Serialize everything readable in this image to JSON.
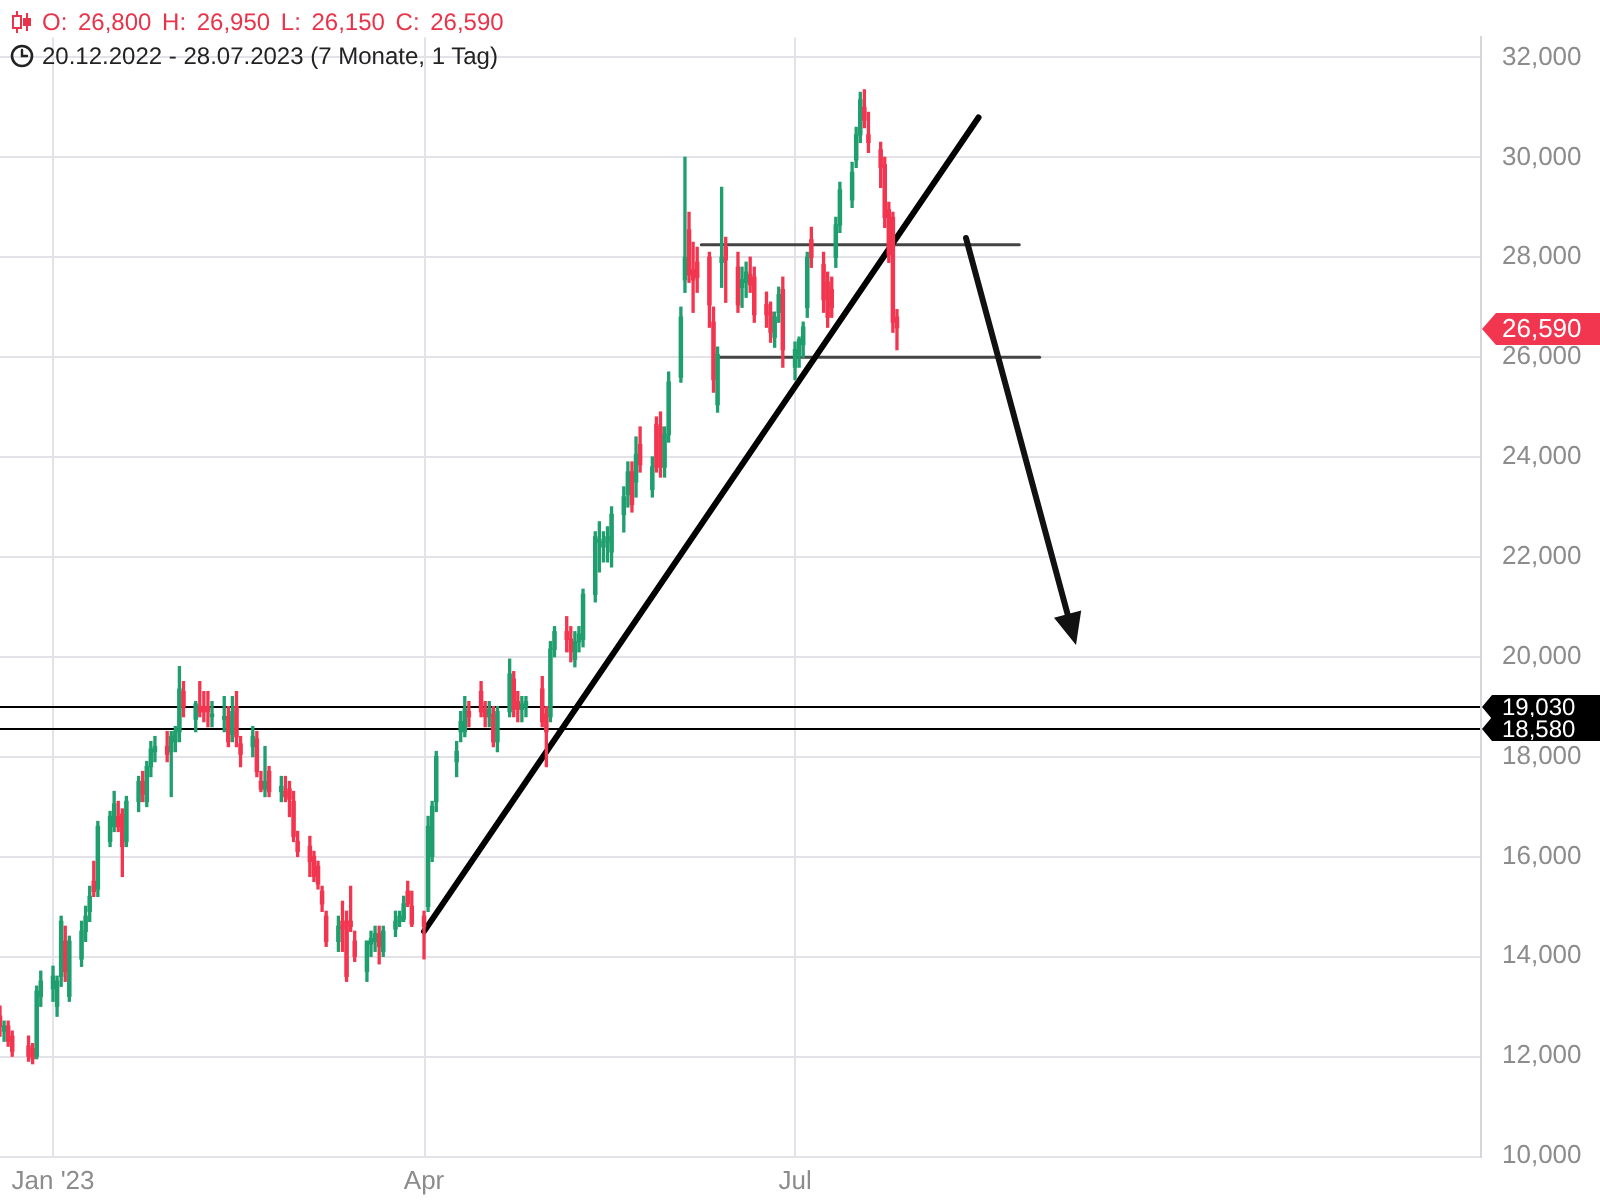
{
  "chart_data": {
    "type": "candlestick",
    "title": "O: 26,800 H: 26,950 L: 26,150 C: 26,590",
    "subtitle": "20.12.2022 - 28.07.2023 (7 Monate, 1 Tag)",
    "x": [
      "2022-12-20",
      "2022-12-21",
      "2022-12-22",
      "2022-12-23",
      "2022-12-27",
      "2022-12-28",
      "2022-12-29",
      "2022-12-30",
      "2023-01-02",
      "2023-01-03",
      "2023-01-04",
      "2023-01-05",
      "2023-01-06",
      "2023-01-09",
      "2023-01-10",
      "2023-01-11",
      "2023-01-12",
      "2023-01-13",
      "2023-01-16",
      "2023-01-17",
      "2023-01-18",
      "2023-01-19",
      "2023-01-20",
      "2023-01-23",
      "2023-01-24",
      "2023-01-25",
      "2023-01-26",
      "2023-01-27",
      "2023-01-30",
      "2023-01-31",
      "2023-02-01",
      "2023-02-02",
      "2023-02-03",
      "2023-02-06",
      "2023-02-07",
      "2023-02-08",
      "2023-02-09",
      "2023-02-10",
      "2023-02-13",
      "2023-02-14",
      "2023-02-15",
      "2023-02-16",
      "2023-02-17",
      "2023-02-20",
      "2023-02-21",
      "2023-02-22",
      "2023-02-23",
      "2023-02-24",
      "2023-02-27",
      "2023-02-28",
      "2023-03-01",
      "2023-03-02",
      "2023-03-03",
      "2023-03-06",
      "2023-03-07",
      "2023-03-08",
      "2023-03-09",
      "2023-03-10",
      "2023-03-13",
      "2023-03-14",
      "2023-03-15",
      "2023-03-16",
      "2023-03-17",
      "2023-03-20",
      "2023-03-21",
      "2023-03-22",
      "2023-03-23",
      "2023-03-24",
      "2023-03-27",
      "2023-03-28",
      "2023-03-29",
      "2023-03-30",
      "2023-03-31",
      "2023-04-03",
      "2023-04-04",
      "2023-04-05",
      "2023-04-06",
      "2023-04-11",
      "2023-04-12",
      "2023-04-13",
      "2023-04-14",
      "2023-04-17",
      "2023-04-18",
      "2023-04-19",
      "2023-04-20",
      "2023-04-21",
      "2023-04-24",
      "2023-04-25",
      "2023-04-26",
      "2023-04-27",
      "2023-04-28",
      "2023-05-02",
      "2023-05-03",
      "2023-05-04",
      "2023-05-05",
      "2023-05-08",
      "2023-05-09",
      "2023-05-10",
      "2023-05-11",
      "2023-05-12",
      "2023-05-15",
      "2023-05-16",
      "2023-05-17",
      "2023-05-18",
      "2023-05-19",
      "2023-05-22",
      "2023-05-23",
      "2023-05-24",
      "2023-05-25",
      "2023-05-26",
      "2023-05-29",
      "2023-05-30",
      "2023-05-31",
      "2023-06-01",
      "2023-06-02",
      "2023-06-05",
      "2023-06-06",
      "2023-06-07",
      "2023-06-08",
      "2023-06-09",
      "2023-06-12",
      "2023-06-13",
      "2023-06-14",
      "2023-06-15",
      "2023-06-16",
      "2023-06-19",
      "2023-06-20",
      "2023-06-21",
      "2023-06-22",
      "2023-06-23",
      "2023-06-26",
      "2023-06-27",
      "2023-06-28",
      "2023-06-29",
      "2023-06-30",
      "2023-07-03",
      "2023-07-04",
      "2023-07-05",
      "2023-07-06",
      "2023-07-07",
      "2023-07-10",
      "2023-07-11",
      "2023-07-12",
      "2023-07-13",
      "2023-07-14",
      "2023-07-17",
      "2023-07-18",
      "2023-07-19",
      "2023-07-20",
      "2023-07-21",
      "2023-07-24",
      "2023-07-25",
      "2023-07-26",
      "2023-07-27",
      "2023-07-28"
    ],
    "ohlc": [
      [
        12800,
        13000,
        12400,
        12600
      ],
      [
        12500,
        12700,
        12300,
        12600
      ],
      [
        12600,
        12700,
        12200,
        12300
      ],
      [
        12400,
        12500,
        12000,
        12100
      ],
      [
        12200,
        12400,
        11900,
        12000
      ],
      [
        12150,
        12250,
        11850,
        11950
      ],
      [
        12000,
        13400,
        11950,
        13300
      ],
      [
        13200,
        13700,
        13000,
        13500
      ],
      [
        13350,
        13800,
        13100,
        13600
      ],
      [
        13000,
        13600,
        12800,
        13500
      ],
      [
        13600,
        14800,
        13400,
        14700
      ],
      [
        14300,
        14600,
        13500,
        13700
      ],
      [
        13200,
        14400,
        13100,
        14300
      ],
      [
        13950,
        14700,
        13800,
        14500
      ],
      [
        14500,
        15000,
        14300,
        14800
      ],
      [
        14900,
        15400,
        14700,
        15200
      ],
      [
        15500,
        15900,
        15200,
        15300
      ],
      [
        15350,
        16700,
        15200,
        16600
      ],
      [
        16300,
        16900,
        16200,
        16800
      ],
      [
        16600,
        17300,
        16500,
        17050
      ],
      [
        16800,
        17100,
        16500,
        16600
      ],
      [
        16850,
        16950,
        15600,
        16200
      ],
      [
        16300,
        17200,
        16200,
        17100
      ],
      [
        17100,
        17600,
        16900,
        17500
      ],
      [
        17500,
        17700,
        17100,
        17250
      ],
      [
        17100,
        17900,
        17000,
        17800
      ],
      [
        17800,
        18300,
        17600,
        18150
      ],
      [
        18100,
        18400,
        17900,
        18200
      ],
      [
        18200,
        18500,
        17900,
        18050
      ],
      [
        18100,
        18500,
        17200,
        18400
      ],
      [
        18300,
        18600,
        18100,
        18500
      ],
      [
        18500,
        19800,
        18300,
        19350
      ],
      [
        19300,
        19500,
        18800,
        19000
      ],
      [
        18750,
        19100,
        18500,
        19050
      ],
      [
        19000,
        19500,
        18800,
        18900
      ],
      [
        19000,
        19300,
        18700,
        18900
      ],
      [
        19000,
        19300,
        18600,
        18900
      ],
      [
        18800,
        19100,
        18600,
        18850
      ],
      [
        18750,
        19200,
        18500,
        18800
      ],
      [
        18800,
        19000,
        18200,
        18300
      ],
      [
        18450,
        19200,
        18300,
        18900
      ],
      [
        19000,
        19300,
        18200,
        18400
      ],
      [
        18250,
        18400,
        17800,
        18050
      ],
      [
        18200,
        18600,
        18000,
        18400
      ],
      [
        18350,
        18500,
        17600,
        17700
      ],
      [
        17500,
        17700,
        17300,
        17350
      ],
      [
        17350,
        18200,
        17200,
        17500
      ],
      [
        17700,
        17800,
        17200,
        17300
      ],
      [
        17300,
        17600,
        17100,
        17400
      ],
      [
        17300,
        17600,
        17100,
        17200
      ],
      [
        17350,
        17500,
        16800,
        17150
      ],
      [
        17100,
        17300,
        16300,
        16400
      ],
      [
        16300,
        16500,
        16000,
        16100
      ],
      [
        16200,
        16400,
        15600,
        15900
      ],
      [
        16000,
        16100,
        15500,
        15600
      ],
      [
        15800,
        15900,
        15350,
        15450
      ],
      [
        15300,
        15400,
        14900,
        15050
      ],
      [
        14800,
        14900,
        14200,
        14300
      ],
      [
        14300,
        14800,
        14100,
        14600
      ],
      [
        14700,
        15100,
        14100,
        14550
      ],
      [
        14700,
        14900,
        13500,
        13600
      ],
      [
        14700,
        15400,
        14500,
        14600
      ],
      [
        14300,
        14500,
        13900,
        14000
      ],
      [
        13700,
        14300,
        13500,
        14300
      ],
      [
        14250,
        14500,
        14000,
        14350
      ],
      [
        14300,
        14600,
        14100,
        14450
      ],
      [
        14450,
        14600,
        13850,
        14200
      ],
      [
        14100,
        14600,
        14000,
        14500
      ],
      [
        14550,
        14900,
        14400,
        14700
      ],
      [
        14700,
        14900,
        14600,
        14800
      ],
      [
        14750,
        15200,
        14700,
        15050
      ],
      [
        15300,
        15500,
        15000,
        15050
      ],
      [
        15000,
        15300,
        14600,
        14650
      ],
      [
        14800,
        14900,
        13950,
        14600
      ],
      [
        15000,
        16800,
        14900,
        16600
      ],
      [
        16000,
        17100,
        15900,
        17000
      ],
      [
        17100,
        18100,
        16900,
        18000
      ],
      [
        17900,
        18300,
        17600,
        18100
      ],
      [
        18500,
        18900,
        18300,
        18700
      ],
      [
        18500,
        19200,
        18400,
        18950
      ],
      [
        18900,
        19100,
        18600,
        18800
      ],
      [
        19300,
        19500,
        18800,
        18900
      ],
      [
        18950,
        19100,
        18600,
        18800
      ],
      [
        18800,
        19100,
        18600,
        18950
      ],
      [
        18850,
        19000,
        18200,
        18300
      ],
      [
        18300,
        19000,
        18100,
        18900
      ],
      [
        18900,
        19950,
        18800,
        19650
      ],
      [
        19550,
        19700,
        18800,
        18950
      ],
      [
        19100,
        19300,
        18700,
        18950
      ],
      [
        18950,
        19200,
        18700,
        19050
      ],
      [
        19000,
        19200,
        18800,
        19100
      ],
      [
        19350,
        19600,
        18600,
        18700
      ],
      [
        18850,
        19000,
        17800,
        18500
      ],
      [
        18800,
        20300,
        18700,
        20150
      ],
      [
        20150,
        20600,
        20000,
        20500
      ],
      [
        20500,
        20800,
        20100,
        20350
      ],
      [
        20350,
        20600,
        19900,
        20100
      ],
      [
        19950,
        20500,
        19800,
        20300
      ],
      [
        20300,
        20600,
        20100,
        20450
      ],
      [
        20350,
        21350,
        20200,
        21250
      ],
      [
        21250,
        22500,
        21100,
        22400
      ],
      [
        22300,
        22700,
        21700,
        22350
      ],
      [
        22200,
        22500,
        21900,
        22300
      ],
      [
        22300,
        22600,
        21900,
        22400
      ],
      [
        22100,
        23000,
        21800,
        22850
      ],
      [
        22850,
        23400,
        22500,
        23200
      ],
      [
        23250,
        23900,
        23000,
        23700
      ],
      [
        23700,
        23900,
        22900,
        23050
      ],
      [
        23500,
        24400,
        23200,
        24050
      ],
      [
        24250,
        24600,
        23700,
        23850
      ],
      [
        23350,
        24000,
        23200,
        23800
      ],
      [
        24650,
        24800,
        23700,
        23800
      ],
      [
        24600,
        24900,
        23600,
        23800
      ],
      [
        23800,
        24600,
        23600,
        24450
      ],
      [
        24450,
        25700,
        24300,
        25500
      ],
      [
        25600,
        27000,
        25500,
        26800
      ],
      [
        27550,
        30000,
        27300,
        28000
      ],
      [
        28550,
        28900,
        27500,
        27650
      ],
      [
        27750,
        28300,
        26900,
        27550
      ],
      [
        27900,
        28200,
        27300,
        27600
      ],
      [
        28000,
        28100,
        26600,
        27050
      ],
      [
        26700,
        27000,
        25300,
        25550
      ],
      [
        25050,
        26200,
        24900,
        26050
      ],
      [
        27900,
        29400,
        27400,
        28000
      ],
      [
        28200,
        28400,
        27100,
        27950
      ],
      [
        27800,
        28100,
        26900,
        27050
      ],
      [
        27400,
        27800,
        27000,
        27550
      ],
      [
        27500,
        27900,
        27200,
        27700
      ],
      [
        27650,
        28000,
        27300,
        27450
      ],
      [
        27600,
        27800,
        26700,
        26850
      ],
      [
        27050,
        27300,
        26600,
        26850
      ],
      [
        26900,
        27100,
        26300,
        26500
      ],
      [
        26400,
        26900,
        26200,
        26800
      ],
      [
        26900,
        27400,
        26700,
        27250
      ],
      [
        27350,
        27600,
        25800,
        26150
      ],
      [
        25800,
        26300,
        25550,
        26150
      ],
      [
        26050,
        26400,
        25800,
        26350
      ],
      [
        26250,
        26700,
        26000,
        26600
      ],
      [
        27000,
        28100,
        26800,
        28000
      ],
      [
        28350,
        28600,
        27800,
        28000
      ],
      [
        27850,
        28100,
        26900,
        27150
      ],
      [
        27500,
        27700,
        26600,
        26800
      ],
      [
        27350,
        27600,
        26800,
        27000
      ],
      [
        28000,
        28800,
        27800,
        28650
      ],
      [
        28650,
        29500,
        28500,
        29350
      ],
      [
        29150,
        29900,
        29000,
        29700
      ],
      [
        29950,
        30600,
        29800,
        30450
      ],
      [
        30450,
        31300,
        30300,
        31150
      ],
      [
        31000,
        31350,
        30600,
        30750
      ],
      [
        30450,
        30900,
        30100,
        30300
      ],
      [
        30150,
        30300,
        29400,
        29800
      ],
      [
        29850,
        30000,
        28600,
        28800
      ],
      [
        28950,
        29100,
        27900,
        28050
      ],
      [
        28800,
        28900,
        26500,
        26700
      ],
      [
        26800,
        26950,
        26150,
        26590
      ]
    ],
    "colors": [
      "#f23650",
      "#1f9e6e",
      "#f23650",
      "#f23650",
      "#f23650",
      "#f23650",
      "#1f9e6e",
      "#1f9e6e",
      "#1f9e6e",
      "#1f9e6e",
      "#1f9e6e",
      "#f23650",
      "#1f9e6e",
      "#1f9e6e",
      "#1f9e6e",
      "#1f9e6e",
      "#f23650",
      "#1f9e6e",
      "#1f9e6e",
      "#1f9e6e",
      "#f23650",
      "#f23650",
      "#1f9e6e",
      "#1f9e6e",
      "#f23650",
      "#1f9e6e",
      "#1f9e6e",
      "#1f9e6e",
      "#f23650",
      "#1f9e6e",
      "#1f9e6e",
      "#1f9e6e",
      "#f23650",
      "#1f9e6e",
      "#f23650",
      "#f23650",
      "#f23650",
      "#1f9e6e",
      "#1f9e6e",
      "#f23650",
      "#1f9e6e",
      "#f23650",
      "#f23650",
      "#1f9e6e",
      "#f23650",
      "#f23650",
      "#1f9e6e",
      "#f23650",
      "#1f9e6e",
      "#f23650",
      "#f23650",
      "#f23650",
      "#f23650",
      "#f23650",
      "#f23650",
      "#f23650",
      "#f23650",
      "#f23650",
      "#1f9e6e",
      "#f23650",
      "#f23650",
      "#f23650",
      "#f23650",
      "#1f9e6e",
      "#1f9e6e",
      "#1f9e6e",
      "#f23650",
      "#1f9e6e",
      "#1f9e6e",
      "#1f9e6e",
      "#1f9e6e",
      "#f23650",
      "#f23650",
      "#f23650",
      "#1f9e6e",
      "#1f9e6e",
      "#1f9e6e",
      "#1f9e6e",
      "#1f9e6e",
      "#1f9e6e",
      "#f23650",
      "#f23650",
      "#f23650",
      "#1f9e6e",
      "#f23650",
      "#1f9e6e",
      "#1f9e6e",
      "#f23650",
      "#f23650",
      "#1f9e6e",
      "#1f9e6e",
      "#f23650",
      "#f23650",
      "#1f9e6e",
      "#1f9e6e",
      "#f23650",
      "#f23650",
      "#1f9e6e",
      "#1f9e6e",
      "#1f9e6e",
      "#1f9e6e",
      "#1f9e6e",
      "#1f9e6e",
      "#1f9e6e",
      "#1f9e6e",
      "#1f9e6e",
      "#1f9e6e",
      "#f23650",
      "#1f9e6e",
      "#f23650",
      "#1f9e6e",
      "#f23650",
      "#f23650",
      "#1f9e6e",
      "#1f9e6e",
      "#1f9e6e",
      "#1f9e6e",
      "#f23650",
      "#f23650",
      "#f23650",
      "#f23650",
      "#f23650",
      "#1f9e6e",
      "#1f9e6e",
      "#f23650",
      "#f23650",
      "#1f9e6e",
      "#1f9e6e",
      "#f23650",
      "#f23650",
      "#f23650",
      "#f23650",
      "#1f9e6e",
      "#1f9e6e",
      "#f23650",
      "#1f9e6e",
      "#1f9e6e",
      "#1f9e6e",
      "#1f9e6e",
      "#f23650",
      "#f23650",
      "#f23650",
      "#f23650",
      "#1f9e6e",
      "#1f9e6e",
      "#1f9e6e",
      "#1f9e6e",
      "#1f9e6e",
      "#f23650",
      "#f23650",
      "#f23650",
      "#f23650",
      "#f23650",
      "#f23650",
      "#f23650"
    ],
    "series": [
      {
        "type": "line",
        "x": [
          "2023-04-03",
          "2023-08-17"
        ],
        "values": [
          14500,
          30800
        ],
        "color": "#000000"
      },
      {
        "type": "line",
        "x": [
          "2023-06-10",
          "2023-08-27"
        ],
        "values": [
          28250,
          28250
        ],
        "color": "#444444"
      },
      {
        "type": "line",
        "x": [
          "2023-06-14",
          "2023-09-01"
        ],
        "values": [
          26000,
          26000
        ],
        "color": "#444444"
      }
    ],
    "xlim": [
      "2022-12-20",
      "2023-12-18"
    ],
    "xticks": [
      {
        "value": "2023-01-02",
        "label": "Jan '23"
      },
      {
        "value": "2023-04-03",
        "label": "Apr"
      },
      {
        "value": "2023-07-03",
        "label": "Jul"
      }
    ],
    "ylim": [
      10000,
      32400
    ],
    "yticks": [
      {
        "value": 10000,
        "label": "10,000"
      },
      {
        "value": 12000,
        "label": "12,000"
      },
      {
        "value": 14000,
        "label": "14,000"
      },
      {
        "value": 16000,
        "label": "16,000"
      },
      {
        "value": 18000,
        "label": "18,000"
      },
      {
        "value": 20000,
        "label": "20,000"
      },
      {
        "value": 22000,
        "label": "22,000"
      },
      {
        "value": 24000,
        "label": "24,000"
      },
      {
        "value": 26000,
        "label": "26,000"
      },
      {
        "value": 28000,
        "label": "28,000"
      },
      {
        "value": 30000,
        "label": "30,000"
      },
      {
        "value": 32000,
        "label": "32,000"
      }
    ],
    "grid": true,
    "ref_lines": [
      {
        "axis": "y",
        "value": 19030,
        "label": "19,030",
        "color": "#000000"
      },
      {
        "axis": "y",
        "value": 18580,
        "label": "18,580",
        "color": "#000000"
      }
    ],
    "annotations": [
      "26,590"
    ]
  }
}
